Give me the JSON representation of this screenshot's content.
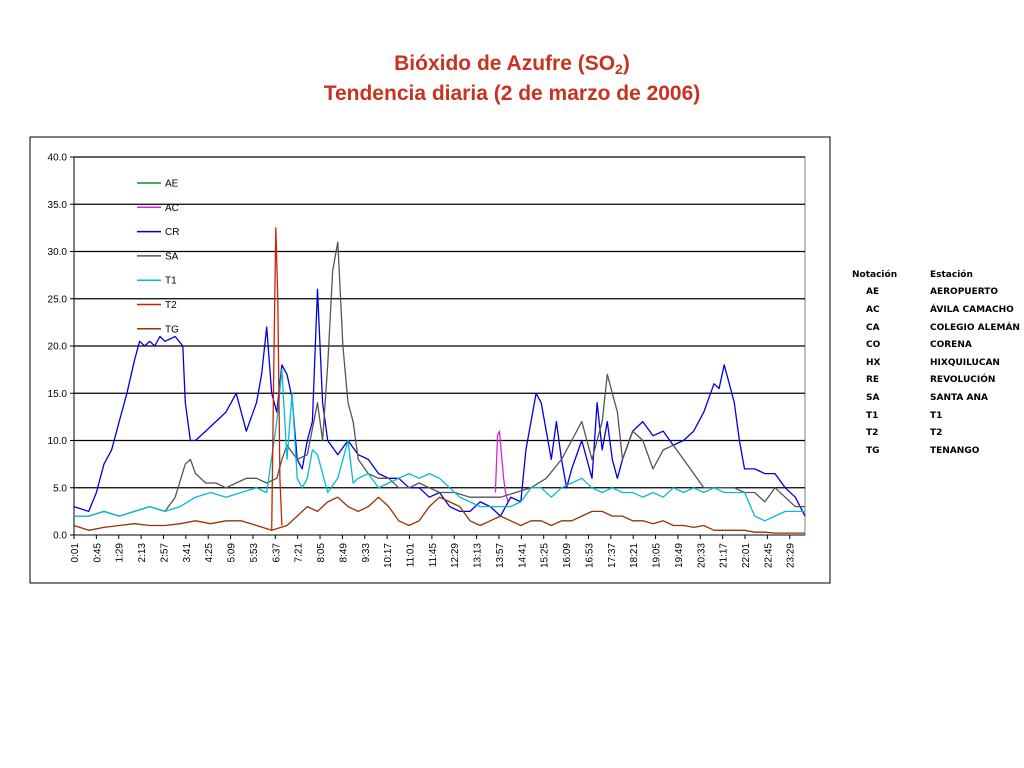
{
  "title": {
    "line1_prefix": "Bióxido de Azufre (SO",
    "line1_sub": "2",
    "line1_suffix": ")",
    "line2": "Tendencia diaria (2 de marzo de 2006)"
  },
  "station_table": {
    "headers": [
      "Notación",
      "Estación"
    ],
    "rows": [
      [
        "AE",
        "AEROPUERTO"
      ],
      [
        "AC",
        "ÁVILA CAMACHO"
      ],
      [
        "CA",
        "COLEGIO ALEMÁN"
      ],
      [
        "CO",
        "CORENA"
      ],
      [
        "HX",
        "HIXQUILUCAN"
      ],
      [
        "RE",
        "REVOLUCIÓN"
      ],
      [
        "SA",
        "SANTA ANA"
      ],
      [
        "T1",
        "T1"
      ],
      [
        "T2",
        "T2"
      ],
      [
        "TG",
        "TENANGO"
      ]
    ]
  },
  "chart_data": {
    "type": "line",
    "title": "",
    "xlabel": "",
    "ylabel": "",
    "ylim": [
      0,
      40
    ],
    "yticks": [
      "0.0",
      "5.0",
      "10.0",
      "15.0",
      "20.0",
      "25.0",
      "30.0",
      "35.0",
      "40.0"
    ],
    "xlim": [
      "0:01",
      "23:59"
    ],
    "xticks": [
      "0:01",
      "0:45",
      "1:29",
      "2:13",
      "2:57",
      "3:41",
      "4:25",
      "5:09",
      "5:53",
      "6:37",
      "7:21",
      "8:05",
      "8:49",
      "9:33",
      "10:17",
      "11:01",
      "11:45",
      "12:29",
      "13:13",
      "13:57",
      "14:41",
      "15:25",
      "16:09",
      "16:53",
      "17:37",
      "18:21",
      "19:05",
      "19:49",
      "20:33",
      "21:17",
      "22:01",
      "22:45",
      "23:29"
    ],
    "grid": "horizontal",
    "legend_position": "upper-left",
    "series": [
      {
        "name": "AE",
        "color": "#1a8c1a",
        "x": [],
        "y": []
      },
      {
        "name": "AC",
        "color": "#e020e0",
        "x": [
          "13:50",
          "13:54",
          "13:58",
          "14:02",
          "14:06",
          "14:10",
          "14:15"
        ],
        "y": [
          4.5,
          10.5,
          11.0,
          8.5,
          6.0,
          4.5,
          3.5
        ]
      },
      {
        "name": "CR",
        "color": "#0000dd",
        "x": [
          "0:01",
          "0:30",
          "0:45",
          "1:00",
          "1:15",
          "1:30",
          "1:45",
          "2:00",
          "2:10",
          "2:20",
          "2:30",
          "2:40",
          "2:50",
          "3:00",
          "3:20",
          "3:35",
          "3:40",
          "3:50",
          "4:00",
          "4:20",
          "4:40",
          "5:00",
          "5:20",
          "5:40",
          "6:00",
          "6:10",
          "6:20",
          "6:30",
          "6:40",
          "6:50",
          "7:00",
          "7:10",
          "7:20",
          "7:30",
          "7:40",
          "7:50",
          "8:00",
          "8:10",
          "8:20",
          "8:40",
          "9:00",
          "9:20",
          "9:40",
          "10:00",
          "10:20",
          "10:40",
          "11:00",
          "11:20",
          "11:40",
          "12:00",
          "12:20",
          "12:40",
          "13:00",
          "13:20",
          "13:40",
          "14:00",
          "14:20",
          "14:40",
          "14:50",
          "15:00",
          "15:10",
          "15:20",
          "15:40",
          "15:50",
          "16:00",
          "16:10",
          "16:20",
          "16:40",
          "17:00",
          "17:10",
          "17:20",
          "17:30",
          "17:40",
          "17:50",
          "18:00",
          "18:20",
          "18:40",
          "19:00",
          "19:20",
          "19:40",
          "20:00",
          "20:20",
          "20:40",
          "21:00",
          "21:10",
          "21:20",
          "21:30",
          "21:40",
          "21:50",
          "22:00",
          "22:20",
          "22:40",
          "23:00",
          "23:20",
          "23:40",
          "23:59"
        ],
        "y": [
          3.0,
          2.5,
          4.5,
          7.5,
          9.0,
          12.0,
          15.0,
          18.5,
          20.5,
          20.0,
          20.5,
          20.0,
          21.0,
          20.5,
          21.0,
          20.0,
          14.0,
          10.0,
          10.0,
          11.0,
          12.0,
          13.0,
          15.0,
          11.0,
          14.0,
          17.0,
          22.0,
          15.0,
          13.0,
          18.0,
          17.0,
          14.5,
          8.0,
          7.0,
          10.0,
          12.0,
          26.0,
          14.0,
          10.0,
          8.5,
          10.0,
          8.5,
          8.0,
          6.5,
          6.0,
          6.0,
          5.0,
          5.0,
          4.0,
          4.5,
          3.0,
          2.5,
          2.5,
          3.5,
          3.0,
          2.0,
          4.0,
          3.5,
          9.0,
          12.0,
          15.0,
          14.0,
          8.0,
          12.0,
          8.0,
          5.0,
          7.0,
          10.0,
          6.0,
          14.0,
          9.0,
          12.0,
          8.0,
          6.0,
          8.0,
          11.0,
          12.0,
          10.5,
          11.0,
          9.5,
          10.0,
          11.0,
          13.0,
          16.0,
          15.5,
          18.0,
          16.0,
          14.0,
          10.0,
          7.0,
          7.0,
          6.5,
          6.5,
          5.0,
          4.0,
          2.0
        ]
      },
      {
        "name": "SA",
        "color": "#555555",
        "x": [
          "0:01",
          "0:30",
          "1:00",
          "1:30",
          "2:00",
          "2:30",
          "3:00",
          "3:20",
          "3:40",
          "3:50",
          "4:00",
          "4:20",
          "4:40",
          "5:00",
          "5:20",
          "5:40",
          "6:00",
          "6:20",
          "6:40",
          "6:50",
          "7:00",
          "7:20",
          "7:40",
          "8:00",
          "8:10",
          "8:20",
          "8:30",
          "8:40",
          "8:50",
          "9:00",
          "9:10",
          "9:20",
          "9:40",
          "10:00",
          "10:20",
          "10:40",
          "11:00",
          "11:20",
          "11:40",
          "12:00",
          "12:30",
          "13:00",
          "13:30",
          "14:00",
          "14:30",
          "15:00",
          "15:30",
          "16:00",
          "16:20",
          "16:40",
          "16:50",
          "17:00",
          "17:20",
          "17:30",
          "17:40",
          "17:50",
          "18:00",
          "18:20",
          "18:40",
          "19:00",
          "19:20",
          "19:40",
          "20:00",
          "20:20",
          "20:40",
          "21:00",
          "21:20",
          "21:40",
          "22:00",
          "22:20",
          "22:40",
          "23:00",
          "23:20",
          "23:40",
          "23:59"
        ],
        "y": [
          2.0,
          2.0,
          2.5,
          2.0,
          2.5,
          3.0,
          2.5,
          4.0,
          7.5,
          8.0,
          6.5,
          5.5,
          5.5,
          5.0,
          5.5,
          6.0,
          6.0,
          5.5,
          6.0,
          8.0,
          9.5,
          8.0,
          8.5,
          14.0,
          10.0,
          18.0,
          28.0,
          31.0,
          20.0,
          14.0,
          12.0,
          8.0,
          6.5,
          6.0,
          6.0,
          5.0,
          5.0,
          5.5,
          5.0,
          4.5,
          4.5,
          4.0,
          4.0,
          4.0,
          4.5,
          5.0,
          6.0,
          8.0,
          10.0,
          12.0,
          10.0,
          8.0,
          12.0,
          17.0,
          15.0,
          13.0,
          8.0,
          11.0,
          10.0,
          7.0,
          9.0,
          9.5,
          8.0,
          6.5,
          5.0,
          5.0,
          5.0,
          5.0,
          4.5,
          4.5,
          3.5,
          5.0,
          4.0,
          3.0,
          3.0
        ]
      },
      {
        "name": "T1",
        "color": "#00bcd4",
        "x": [
          "0:01",
          "0:30",
          "1:00",
          "1:30",
          "2:00",
          "2:30",
          "3:00",
          "3:30",
          "4:00",
          "4:30",
          "5:00",
          "5:30",
          "6:00",
          "6:20",
          "6:40",
          "6:50",
          "7:00",
          "7:10",
          "7:20",
          "7:30",
          "7:40",
          "7:50",
          "8:00",
          "8:20",
          "8:40",
          "9:00",
          "9:10",
          "9:20",
          "9:40",
          "10:00",
          "10:20",
          "10:40",
          "11:00",
          "11:20",
          "11:40",
          "12:00",
          "12:20",
          "12:40",
          "13:00",
          "13:20",
          "13:40",
          "14:00",
          "14:20",
          "14:40",
          "15:00",
          "15:20",
          "15:40",
          "16:00",
          "16:20",
          "16:40",
          "17:00",
          "17:20",
          "17:40",
          "18:00",
          "18:20",
          "18:40",
          "19:00",
          "19:20",
          "19:40",
          "20:00",
          "20:20",
          "20:40",
          "21:00",
          "21:20",
          "21:40",
          "22:00",
          "22:20",
          "22:40",
          "23:00",
          "23:20",
          "23:40",
          "23:59"
        ],
        "y": [
          2.0,
          2.0,
          2.5,
          2.0,
          2.5,
          3.0,
          2.5,
          3.0,
          4.0,
          4.5,
          4.0,
          4.5,
          5.0,
          4.5,
          12.0,
          17.5,
          8.0,
          15.0,
          6.0,
          5.0,
          6.0,
          9.0,
          8.5,
          4.5,
          6.0,
          10.0,
          5.5,
          6.0,
          6.5,
          5.0,
          5.5,
          6.0,
          6.5,
          6.0,
          6.5,
          6.0,
          5.0,
          4.0,
          3.5,
          3.0,
          3.0,
          3.0,
          3.0,
          3.5,
          5.0,
          5.0,
          4.0,
          5.0,
          5.5,
          6.0,
          5.0,
          4.5,
          5.0,
          4.5,
          4.5,
          4.0,
          4.5,
          4.0,
          5.0,
          4.5,
          5.0,
          4.5,
          5.0,
          4.5,
          4.5,
          4.5,
          2.0,
          1.5,
          2.0,
          2.5,
          2.5,
          2.5
        ]
      },
      {
        "name": "T2",
        "color": "#cc2200",
        "x": [
          "6:30",
          "6:34",
          "6:38",
          "6:42",
          "6:46",
          "6:50"
        ],
        "y": [
          0.5,
          18.0,
          32.5,
          25.0,
          6.0,
          1.0
        ]
      },
      {
        "name": "TG",
        "color": "#993300",
        "x": [
          "0:01",
          "0:30",
          "1:00",
          "1:30",
          "2:00",
          "2:30",
          "3:00",
          "3:30",
          "4:00",
          "4:30",
          "5:00",
          "5:30",
          "6:00",
          "6:30",
          "7:00",
          "7:20",
          "7:40",
          "8:00",
          "8:20",
          "8:40",
          "9:00",
          "9:20",
          "9:40",
          "10:00",
          "10:20",
          "10:40",
          "11:00",
          "11:20",
          "11:40",
          "12:00",
          "12:20",
          "12:40",
          "13:00",
          "13:20",
          "13:40",
          "14:00",
          "14:20",
          "14:40",
          "15:00",
          "15:20",
          "15:40",
          "16:00",
          "16:20",
          "16:40",
          "17:00",
          "17:20",
          "17:40",
          "18:00",
          "18:20",
          "18:40",
          "19:00",
          "19:20",
          "19:40",
          "20:00",
          "20:20",
          "20:40",
          "21:00",
          "21:20",
          "21:40",
          "22:00",
          "22:20",
          "22:40",
          "23:00",
          "23:20",
          "23:40",
          "23:59"
        ],
        "y": [
          1.0,
          0.5,
          0.8,
          1.0,
          1.2,
          1.0,
          1.0,
          1.2,
          1.5,
          1.2,
          1.5,
          1.5,
          1.0,
          0.5,
          1.0,
          2.0,
          3.0,
          2.5,
          3.5,
          4.0,
          3.0,
          2.5,
          3.0,
          4.0,
          3.0,
          1.5,
          1.0,
          1.5,
          3.0,
          4.0,
          3.5,
          3.0,
          1.5,
          1.0,
          1.5,
          2.0,
          1.5,
          1.0,
          1.5,
          1.5,
          1.0,
          1.5,
          1.5,
          2.0,
          2.5,
          2.5,
          2.0,
          2.0,
          1.5,
          1.5,
          1.2,
          1.5,
          1.0,
          1.0,
          0.8,
          1.0,
          0.5,
          0.5,
          0.5,
          0.5,
          0.3,
          0.3,
          0.2,
          0.2,
          0.2,
          0.2
        ]
      }
    ]
  }
}
